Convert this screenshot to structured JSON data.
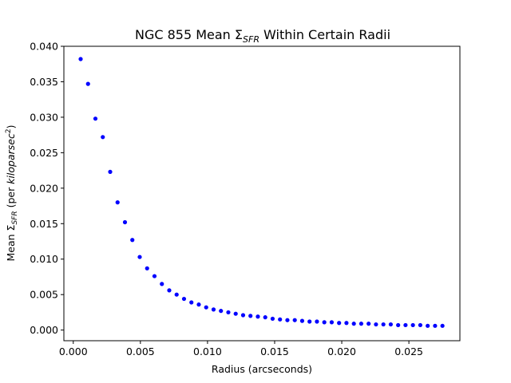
{
  "chart_data": {
    "type": "scatter",
    "title_prefix": "NGC 855 Mean Σ",
    "title_sub": "SFR",
    "title_suffix": " Within Certain Radii",
    "xlabel": "Radius (arcseconds)",
    "ylabel_prefix": "Mean Σ",
    "ylabel_sub": "SFR",
    "ylabel_mid": " (per ",
    "ylabel_italic": "kiloparsec",
    "ylabel_sup": "2",
    "ylabel_suffix": ")",
    "xlim": [
      -0.0007,
      0.0288
    ],
    "ylim": [
      -0.0015,
      0.04
    ],
    "xticks": [
      0.0,
      0.005,
      0.01,
      0.015,
      0.02,
      0.025
    ],
    "xtick_labels": [
      "0.000",
      "0.005",
      "0.010",
      "0.015",
      "0.020",
      "0.025"
    ],
    "yticks": [
      0.0,
      0.005,
      0.01,
      0.015,
      0.02,
      0.025,
      0.03,
      0.035,
      0.04
    ],
    "ytick_labels": [
      "0.000",
      "0.005",
      "0.010",
      "0.015",
      "0.020",
      "0.025",
      "0.030",
      "0.035",
      "0.040"
    ],
    "grid": false,
    "marker_color": "#0000ff",
    "x": [
      0.00055,
      0.0011,
      0.00165,
      0.0022,
      0.00275,
      0.0033,
      0.00385,
      0.0044,
      0.00495,
      0.0055,
      0.00605,
      0.0066,
      0.00715,
      0.0077,
      0.00825,
      0.0088,
      0.00935,
      0.0099,
      0.01045,
      0.011,
      0.01155,
      0.0121,
      0.01265,
      0.0132,
      0.01375,
      0.0143,
      0.01485,
      0.0154,
      0.01595,
      0.0165,
      0.01705,
      0.0176,
      0.01815,
      0.0187,
      0.01925,
      0.0198,
      0.02035,
      0.0209,
      0.02145,
      0.022,
      0.02255,
      0.0231,
      0.02365,
      0.0242,
      0.02475,
      0.0253,
      0.02585,
      0.0264,
      0.02695,
      0.0275
    ],
    "y": [
      0.0382,
      0.0347,
      0.0298,
      0.0272,
      0.0223,
      0.018,
      0.0152,
      0.0127,
      0.0103,
      0.0087,
      0.0076,
      0.0065,
      0.0056,
      0.005,
      0.0044,
      0.0039,
      0.0036,
      0.0032,
      0.0029,
      0.0027,
      0.0025,
      0.0023,
      0.0021,
      0.002,
      0.0019,
      0.0018,
      0.0016,
      0.0015,
      0.0014,
      0.0014,
      0.0013,
      0.0012,
      0.0012,
      0.0011,
      0.0011,
      0.001,
      0.001,
      0.0009,
      0.0009,
      0.0009,
      0.0008,
      0.0008,
      0.0008,
      0.0007,
      0.0007,
      0.0007,
      0.0007,
      0.0006,
      0.0006,
      0.0006
    ]
  }
}
